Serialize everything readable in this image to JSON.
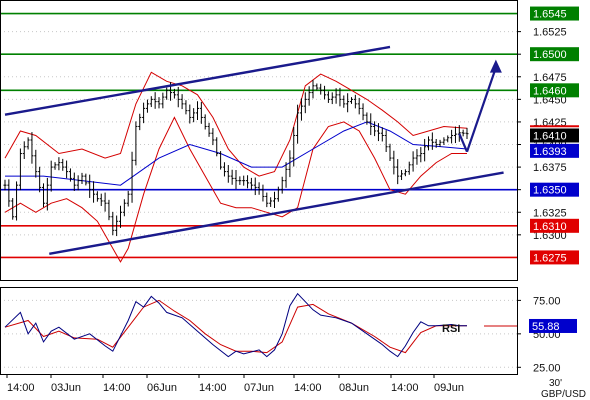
{
  "chart_data": [
    {
      "type": "line",
      "symbol": "GBP/USD",
      "timeframe": "30'",
      "title": "",
      "ylim": [
        1.625,
        1.656
      ],
      "y_ticks": [
        1.63,
        1.6325,
        1.635,
        1.6375,
        1.64,
        1.6425,
        1.645,
        1.6475,
        1.65,
        1.6525
      ],
      "y_tick_labels": [
        "1.6300",
        "1.6325",
        "1.6350",
        "1.6375",
        "1.6400",
        "1.6425",
        "1.6450",
        "1.6475",
        "1.6500",
        "1.6525"
      ],
      "x_labels": [
        "14:00",
        "03Jun",
        "14:00",
        "06Jun",
        "14:00",
        "07Jun",
        "14:00",
        "08Jun",
        "14:00",
        "09Jun"
      ],
      "levels": [
        {
          "label": "1.6545",
          "value": 1.6545,
          "color": "#008000"
        },
        {
          "label": "1.6500",
          "value": 1.65,
          "color": "#008000"
        },
        {
          "label": "1.6460",
          "value": 1.646,
          "color": "#008000"
        },
        {
          "label": "1.6350",
          "value": 1.635,
          "color": "#0000cc"
        },
        {
          "label": "1.6310",
          "value": 1.631,
          "color": "#e00000"
        },
        {
          "label": "1.6275",
          "value": 1.6275,
          "color": "#e00000"
        }
      ],
      "price_flags": [
        {
          "label": "1.6410",
          "value": 1.641,
          "color": "#000000"
        },
        {
          "label": "1.6393",
          "value": 1.6393,
          "color": "#0000cc"
        }
      ],
      "trend_channel": {
        "upper": [
          [
            0,
            1.6433
          ],
          [
            100,
            1.6508
          ]
        ],
        "lower": [
          [
            11.5,
            1.6279
          ],
          [
            129.5,
            1.6369
          ]
        ],
        "color": "#1a1a8c"
      },
      "projection_arrow": {
        "points": [
          [
            120,
            1.6392
          ],
          [
            127.5,
            1.6494
          ]
        ],
        "color": "#1a1a8c"
      },
      "close_series": {
        "name": "",
        "color": "#000000",
        "points": [
          [
            0,
            1.6355
          ],
          [
            2,
            1.632
          ],
          [
            4,
            1.639
          ],
          [
            6,
            1.6405
          ],
          [
            8,
            1.637
          ],
          [
            10,
            1.6335
          ],
          [
            12,
            1.6375
          ],
          [
            14,
            1.638
          ],
          [
            16,
            1.637
          ],
          [
            18,
            1.6355
          ],
          [
            20,
            1.6365
          ],
          [
            22,
            1.635
          ],
          [
            24,
            1.634
          ],
          [
            26,
            1.6335
          ],
          [
            28,
            1.6305
          ],
          [
            30,
            1.6325
          ],
          [
            32,
            1.6345
          ],
          [
            34,
            1.642
          ],
          [
            36,
            1.644
          ],
          [
            38,
            1.645
          ],
          [
            40,
            1.6445
          ],
          [
            42,
            1.646
          ],
          [
            44,
            1.6455
          ],
          [
            46,
            1.6445
          ],
          [
            48,
            1.643
          ],
          [
            50,
            1.644
          ],
          [
            52,
            1.642
          ],
          [
            54,
            1.6405
          ],
          [
            56,
            1.6375
          ],
          [
            58,
            1.6365
          ],
          [
            60,
            1.636
          ],
          [
            62,
            1.636
          ],
          [
            64,
            1.6355
          ],
          [
            66,
            1.635
          ],
          [
            68,
            1.6335
          ],
          [
            70,
            1.634
          ],
          [
            72,
            1.636
          ],
          [
            74,
            1.6385
          ],
          [
            76,
            1.6435
          ],
          [
            78,
            1.645
          ],
          [
            80,
            1.6465
          ],
          [
            82,
            1.646
          ],
          [
            84,
            1.645
          ],
          [
            86,
            1.6455
          ],
          [
            88,
            1.6445
          ],
          [
            90,
            1.645
          ],
          [
            92,
            1.644
          ],
          [
            94,
            1.6425
          ],
          [
            96,
            1.6415
          ],
          [
            98,
            1.641
          ],
          [
            100,
            1.6385
          ],
          [
            102,
            1.6365
          ],
          [
            104,
            1.637
          ],
          [
            106,
            1.6385
          ],
          [
            108,
            1.639
          ],
          [
            110,
            1.6405
          ],
          [
            112,
            1.64
          ],
          [
            114,
            1.6405
          ],
          [
            116,
            1.641
          ],
          [
            118,
            1.6413
          ],
          [
            120,
            1.6412
          ]
        ]
      },
      "ma_series": {
        "name": "",
        "color": "#0000cc",
        "points": [
          [
            0,
            1.6365
          ],
          [
            10,
            1.6365
          ],
          [
            20,
            1.636
          ],
          [
            30,
            1.6355
          ],
          [
            40,
            1.6385
          ],
          [
            48,
            1.64
          ],
          [
            56,
            1.639
          ],
          [
            64,
            1.6375
          ],
          [
            72,
            1.6375
          ],
          [
            80,
            1.6395
          ],
          [
            88,
            1.6415
          ],
          [
            94,
            1.6425
          ],
          [
            100,
            1.6415
          ],
          [
            106,
            1.64
          ],
          [
            112,
            1.6398
          ],
          [
            120,
            1.6395
          ]
        ]
      },
      "bollinger_upper": {
        "name": "",
        "color": "#d40000",
        "points": [
          [
            0,
            1.6385
          ],
          [
            4,
            1.6415
          ],
          [
            8,
            1.641
          ],
          [
            14,
            1.639
          ],
          [
            20,
            1.6395
          ],
          [
            26,
            1.6385
          ],
          [
            30,
            1.639
          ],
          [
            34,
            1.6445
          ],
          [
            38,
            1.648
          ],
          [
            42,
            1.647
          ],
          [
            46,
            1.6465
          ],
          [
            50,
            1.6455
          ],
          [
            54,
            1.643
          ],
          [
            58,
            1.6395
          ],
          [
            62,
            1.6375
          ],
          [
            66,
            1.6365
          ],
          [
            70,
            1.637
          ],
          [
            74,
            1.6405
          ],
          [
            78,
            1.6465
          ],
          [
            82,
            1.6478
          ],
          [
            86,
            1.647
          ],
          [
            90,
            1.646
          ],
          [
            94,
            1.645
          ],
          [
            98,
            1.6438
          ],
          [
            102,
            1.6425
          ],
          [
            106,
            1.641
          ],
          [
            110,
            1.6415
          ],
          [
            114,
            1.642
          ],
          [
            120,
            1.6418
          ]
        ]
      },
      "bollinger_lower": {
        "name": "",
        "color": "#d40000",
        "points": [
          [
            0,
            1.6325
          ],
          [
            4,
            1.6335
          ],
          [
            8,
            1.6325
          ],
          [
            12,
            1.6335
          ],
          [
            16,
            1.634
          ],
          [
            20,
            1.633
          ],
          [
            24,
            1.6315
          ],
          [
            28,
            1.6285
          ],
          [
            30,
            1.627
          ],
          [
            32,
            1.6285
          ],
          [
            36,
            1.6345
          ],
          [
            40,
            1.6395
          ],
          [
            44,
            1.643
          ],
          [
            48,
            1.6395
          ],
          [
            52,
            1.6365
          ],
          [
            56,
            1.6335
          ],
          [
            60,
            1.633
          ],
          [
            64,
            1.633
          ],
          [
            68,
            1.6325
          ],
          [
            72,
            1.632
          ],
          [
            76,
            1.633
          ],
          [
            80,
            1.6395
          ],
          [
            84,
            1.642
          ],
          [
            88,
            1.6425
          ],
          [
            92,
            1.6415
          ],
          [
            96,
            1.6385
          ],
          [
            100,
            1.635
          ],
          [
            104,
            1.6345
          ],
          [
            108,
            1.6365
          ],
          [
            112,
            1.638
          ],
          [
            116,
            1.639
          ],
          [
            120,
            1.639
          ]
        ]
      },
      "rsi": {
        "label": "RSI",
        "ylim": [
          20,
          85
        ],
        "y_ticks": [
          25,
          50,
          75
        ],
        "y_tick_labels": [
          "25.00",
          "50.00",
          "75.00"
        ],
        "value_flag": "55.88",
        "value": 55.88,
        "rsi_series": {
          "name": "",
          "color": "#000080",
          "points": [
            [
              0,
              55
            ],
            [
              4,
              66
            ],
            [
              6,
              50
            ],
            [
              8,
              58
            ],
            [
              10,
              44
            ],
            [
              12,
              52
            ],
            [
              14,
              55
            ],
            [
              18,
              46
            ],
            [
              22,
              50
            ],
            [
              26,
              41
            ],
            [
              28,
              37
            ],
            [
              32,
              60
            ],
            [
              34,
              74
            ],
            [
              36,
              70
            ],
            [
              38,
              78
            ],
            [
              40,
              73
            ],
            [
              42,
              66
            ],
            [
              46,
              62
            ],
            [
              50,
              52
            ],
            [
              54,
              42
            ],
            [
              58,
              33
            ],
            [
              60,
              37
            ],
            [
              62,
              35
            ],
            [
              66,
              38
            ],
            [
              68,
              33
            ],
            [
              70,
              38
            ],
            [
              72,
              50
            ],
            [
              74,
              71
            ],
            [
              76,
              80
            ],
            [
              78,
              74
            ],
            [
              80,
              68
            ],
            [
              82,
              64
            ],
            [
              86,
              62
            ],
            [
              90,
              58
            ],
            [
              94,
              50
            ],
            [
              98,
              42
            ],
            [
              100,
              37
            ],
            [
              102,
              33
            ],
            [
              104,
              41
            ],
            [
              106,
              51
            ],
            [
              108,
              59
            ],
            [
              110,
              56
            ],
            [
              112,
              56
            ],
            [
              116,
              57
            ],
            [
              118,
              56
            ],
            [
              120,
              56
            ]
          ]
        },
        "signal_series": {
          "name": "",
          "color": "#cc0000",
          "points": [
            [
              0,
              55
            ],
            [
              6,
              60
            ],
            [
              10,
              48
            ],
            [
              14,
              52
            ],
            [
              18,
              47
            ],
            [
              24,
              46
            ],
            [
              28,
              40
            ],
            [
              32,
              55
            ],
            [
              36,
              70
            ],
            [
              40,
              75
            ],
            [
              44,
              67
            ],
            [
              48,
              60
            ],
            [
              52,
              50
            ],
            [
              56,
              42
            ],
            [
              60,
              37
            ],
            [
              64,
              37
            ],
            [
              68,
              36
            ],
            [
              72,
              44
            ],
            [
              76,
              70
            ],
            [
              80,
              72
            ],
            [
              84,
              65
            ],
            [
              90,
              58
            ],
            [
              96,
              48
            ],
            [
              100,
              40
            ],
            [
              104,
              36
            ],
            [
              108,
              51
            ],
            [
              112,
              56
            ],
            [
              116,
              56
            ],
            [
              120,
              56
            ]
          ]
        }
      }
    }
  ]
}
